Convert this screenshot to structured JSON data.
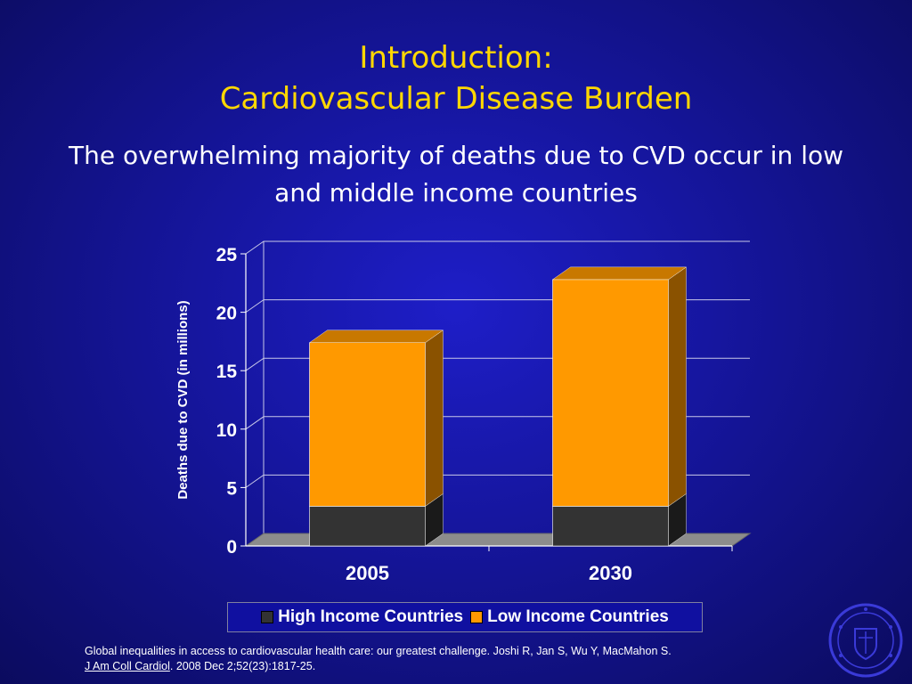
{
  "slide": {
    "title_line1": "Introduction:",
    "title_line2": "Cardiovascular Disease Burden",
    "subtitle": "The overwhelming majority of deaths due to CVD occur in low and middle income countries",
    "citation_text": "Global inequalities in access to cardiovascular health care: our greatest challenge. Joshi R, Jan S, Wu Y, MacMahon S.",
    "citation_journal": "J Am Coll Cardiol",
    "citation_rest": ". 2008 Dec 2;52(23):1817-25.",
    "seal_icon": "university-seal-icon"
  },
  "colors": {
    "high_income": "#333333",
    "low_income": "#ff9900",
    "low_income_dark": "#8a5200",
    "floor": "#8c8c8c",
    "title": "#ffd700"
  },
  "chart_data": {
    "type": "bar",
    "stacked": true,
    "three_d": true,
    "categories": [
      "2005",
      "2030"
    ],
    "series": [
      {
        "name": "High Income Countries",
        "values": [
          3.4,
          3.4
        ]
      },
      {
        "name": "Low Income Countries",
        "values": [
          14.0,
          19.4
        ]
      }
    ],
    "title": "",
    "xlabel": "",
    "ylabel": "Deaths due to CVD (in millions)",
    "ylim": [
      0,
      25
    ],
    "yticks": [
      "0",
      "5",
      "10",
      "15",
      "20",
      "25"
    ],
    "grid": true,
    "legend_position": "bottom"
  }
}
